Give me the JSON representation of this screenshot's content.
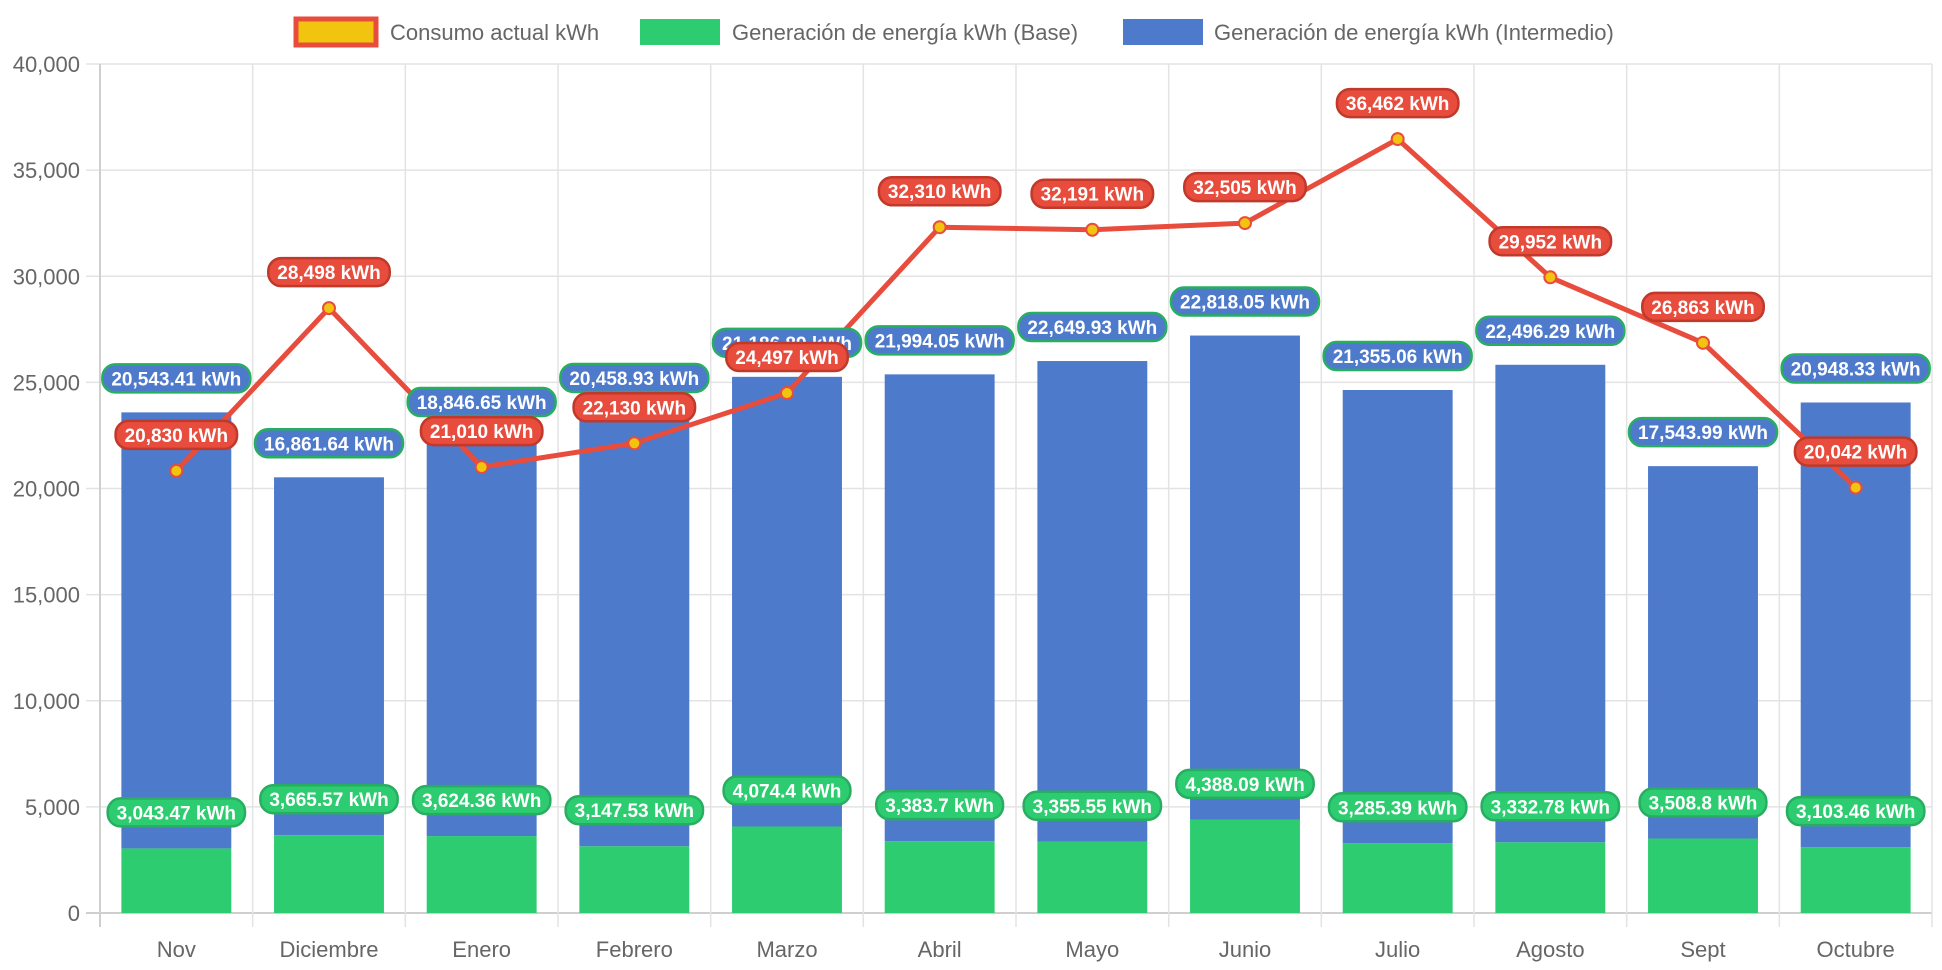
{
  "chart_data": {
    "type": "bar",
    "stacked": true,
    "title": "",
    "xlabel": "",
    "ylabel": "",
    "ylim": [
      0,
      40000
    ],
    "y_ticks": [
      0,
      5000,
      10000,
      15000,
      20000,
      25000,
      30000,
      35000,
      40000
    ],
    "y_tick_labels": [
      "0",
      "5,000",
      "10,000",
      "15,000",
      "20,000",
      "25,000",
      "30,000",
      "35,000",
      "40,000"
    ],
    "grid": true,
    "legend_position": "top-center",
    "categories": [
      "Nov",
      "Diciembre",
      "Enero",
      "Febrero",
      "Marzo",
      "Abril",
      "Mayo",
      "Junio",
      "Julio",
      "Agosto",
      "Sept",
      "Octubre"
    ],
    "series": [
      {
        "name": "Consumo actual kWh",
        "type": "line",
        "color": "#e74c3c",
        "point_color": "#f1c40f",
        "values": [
          20830,
          28498,
          21010,
          22130,
          24497,
          32310,
          32191,
          32505,
          36462,
          29952,
          26863,
          20042
        ],
        "labels": [
          "20,830 kWh",
          "28,498 kWh",
          "21,010 kWh",
          "22,130 kWh",
          "24,497 kWh",
          "32,310 kWh",
          "32,191 kWh",
          "32,505 kWh",
          "36,462 kWh",
          "29,952 kWh",
          "26,863 kWh",
          "20,042 kWh"
        ]
      },
      {
        "name": "Generación de energía kWh (Base)",
        "type": "bar",
        "color": "#2ecc71",
        "values": [
          3043.47,
          3665.57,
          3624.36,
          3147.53,
          4074.4,
          3383.7,
          3355.55,
          4388.09,
          3285.39,
          3332.78,
          3508.8,
          3103.46
        ],
        "labels": [
          "3,043.47 kWh",
          "3,665.57 kWh",
          "3,624.36 kWh",
          "3,147.53 kWh",
          "4,074.4 kWh",
          "3,383.7 kWh",
          "3,355.55 kWh",
          "4,388.09 kWh",
          "3,285.39 kWh",
          "3,332.78 kWh",
          "3,508.8 kWh",
          "3,103.46 kWh"
        ]
      },
      {
        "name": "Generación de energía kWh (Intermedio)",
        "type": "bar",
        "color": "#4e7acc",
        "values": [
          20543.41,
          16861.64,
          18846.65,
          20458.93,
          21186.89,
          21994.05,
          22649.93,
          22818.05,
          21355.06,
          22496.29,
          17543.99,
          20948.33
        ],
        "labels": [
          "20,543.41 kWh",
          "16,861.64 kWh",
          "18,846.65 kWh",
          "20,458.93 kWh",
          "21,186.89 kWh",
          "21,994.05 kWh",
          "22,649.93 kWh",
          "22,818.05 kWh",
          "21,355.06 kWh",
          "22,496.29 kWh",
          "17,543.99 kWh",
          "20,948.33 kWh"
        ]
      }
    ]
  }
}
